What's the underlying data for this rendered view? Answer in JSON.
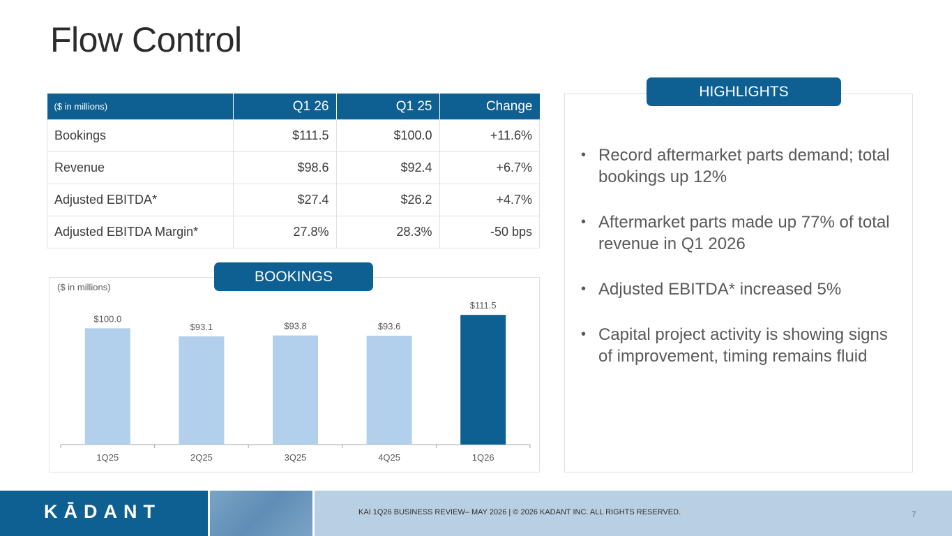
{
  "title": "Flow Control",
  "table": {
    "headers": [
      "($ in millions)",
      "Q1 26",
      "Q1 25",
      "Change"
    ],
    "rows": [
      [
        "Bookings",
        "$111.5",
        "$100.0",
        "+11.6%"
      ],
      [
        "Revenue",
        "$98.6",
        "$92.4",
        "+6.7%"
      ],
      [
        "Adjusted EBITDA*",
        "$27.4",
        "$26.2",
        "+4.7%"
      ],
      [
        "Adjusted EBITDA Margin*",
        "27.8%",
        "28.3%",
        "-50 bps"
      ]
    ]
  },
  "bookings_label": "BOOKINGS",
  "chart_unit": "($ in millions)",
  "chart_data": {
    "type": "bar",
    "categories": [
      "1Q25",
      "2Q25",
      "3Q25",
      "4Q25",
      "1Q26"
    ],
    "values": [
      100.0,
      93.1,
      93.8,
      93.6,
      111.5
    ],
    "data_labels": [
      "$100.0",
      "$93.1",
      "$93.8",
      "$93.6",
      "$111.5"
    ],
    "title": "",
    "xlabel": "",
    "ylabel": "",
    "ylim": [
      0,
      120
    ],
    "grid": false,
    "colors": [
      "#b2d0ec",
      "#b2d0ec",
      "#b2d0ec",
      "#b2d0ec",
      "#0e5f92"
    ]
  },
  "highlights": {
    "label": "HIGHLIGHTS",
    "bullet": "•",
    "items": [
      "Record aftermarket parts demand; total bookings up 12%",
      "Aftermarket parts made up 77% of total revenue in Q1 2026",
      "Adjusted EBITDA* increased 5%",
      "Capital project activity is showing signs of improvement, timing remains fluid"
    ]
  },
  "footer": {
    "logo": "KĀDANT",
    "text": "KAI 1Q26 BUSINESS REVIEW– MAY 2026 | © 2026 KADANT INC. ALL RIGHTS RESERVED.",
    "page": "7"
  }
}
